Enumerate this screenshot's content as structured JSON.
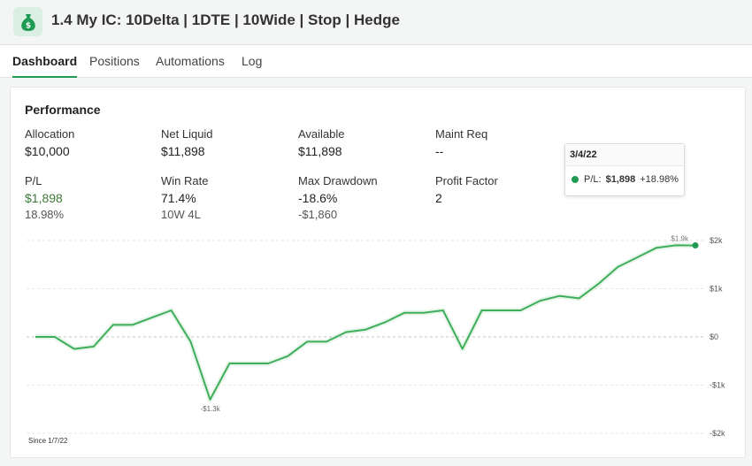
{
  "header": {
    "title": "1.4 My IC: 10Delta | 1DTE | 10Wide | Stop | Hedge",
    "icon": "money-bag-icon"
  },
  "tabs": [
    {
      "label": "Dashboard",
      "active": true
    },
    {
      "label": "Positions",
      "active": false
    },
    {
      "label": "Automations",
      "active": false
    },
    {
      "label": "Log",
      "active": false
    }
  ],
  "performance": {
    "title": "Performance",
    "metrics": {
      "allocation": {
        "label": "Allocation",
        "value": "$10,000"
      },
      "net_liquid": {
        "label": "Net Liquid",
        "value": "$11,898"
      },
      "available": {
        "label": "Available",
        "value": "$11,898"
      },
      "maint_req": {
        "label": "Maint Req",
        "value": "--"
      },
      "pl": {
        "label": "P/L",
        "value": "$1,898",
        "sub": "18.98%"
      },
      "win_rate": {
        "label": "Win Rate",
        "value": "71.4%",
        "sub": "10W 4L"
      },
      "max_drawdown": {
        "label": "Max Drawdown",
        "value": "-18.6%",
        "sub": "-$1,860"
      },
      "profit_factor": {
        "label": "Profit Factor",
        "value": "2"
      }
    },
    "positive_color": "#3d7a3a"
  },
  "chart_data": {
    "type": "line",
    "series": [
      {
        "values": [
          0,
          0,
          -250,
          -200,
          250,
          250,
          400,
          550,
          -100,
          -1300,
          -550,
          -550,
          -550,
          -400,
          -100,
          -100,
          100,
          150,
          300,
          500,
          500,
          550,
          -250,
          550,
          550,
          550,
          750,
          850,
          800,
          1100,
          1450,
          1650,
          1850,
          1900,
          1898
        ]
      }
    ],
    "ylim": [
      -2000,
      2000
    ],
    "y_ticks": [
      "$2k",
      "$1k",
      "$0",
      "-$1k",
      "-$2k"
    ],
    "grid": true,
    "line_color": "#3fae5a",
    "annotations": {
      "min_label": "-$1.3k",
      "last_label": "$1.9k"
    },
    "since_label": "Since 1/7/22",
    "tooltip": {
      "date": "3/4/22",
      "series": "P/L:",
      "value": "$1,898",
      "pct": "+18.98%"
    }
  }
}
